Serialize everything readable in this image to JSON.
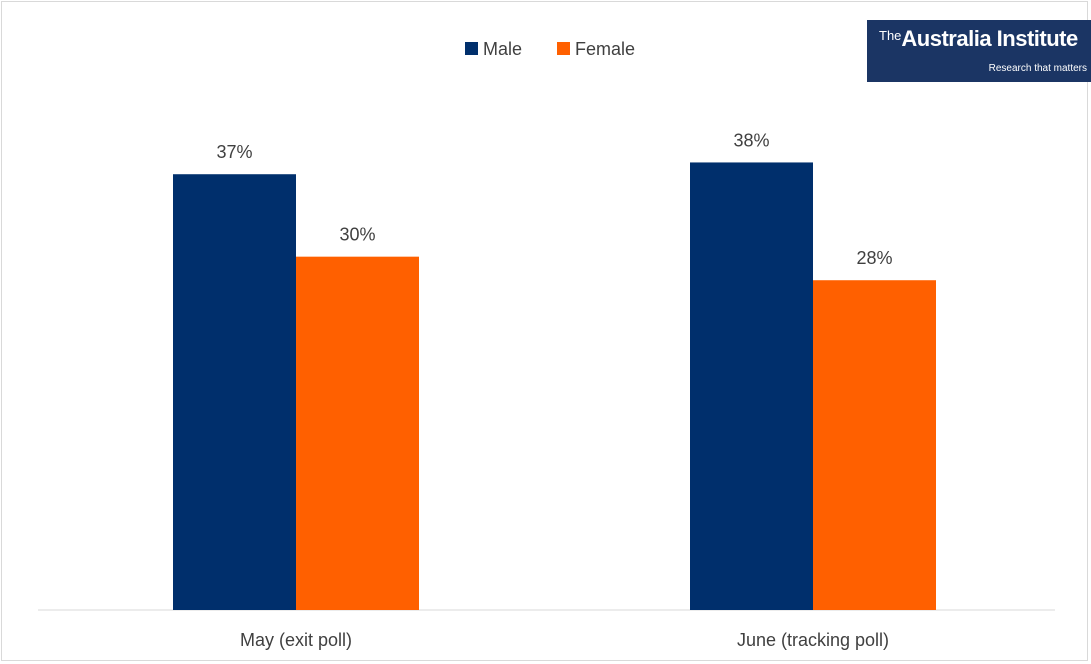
{
  "chart_data": {
    "type": "bar",
    "categories": [
      "May (exit poll)",
      "June (tracking poll)"
    ],
    "series": [
      {
        "name": "Male",
        "values": [
          37,
          38
        ],
        "labels": [
          "37%",
          "38%"
        ],
        "color": "#002f6c"
      },
      {
        "name": "Female",
        "values": [
          30,
          28
        ],
        "labels": [
          "30%",
          "28%"
        ],
        "color": "#ff6000"
      }
    ],
    "ylim": [
      0,
      45
    ],
    "grid": false,
    "legend": "top-center"
  },
  "logo": {
    "the": "The",
    "name": "Australia Institute",
    "tagline": "Research that matters"
  }
}
